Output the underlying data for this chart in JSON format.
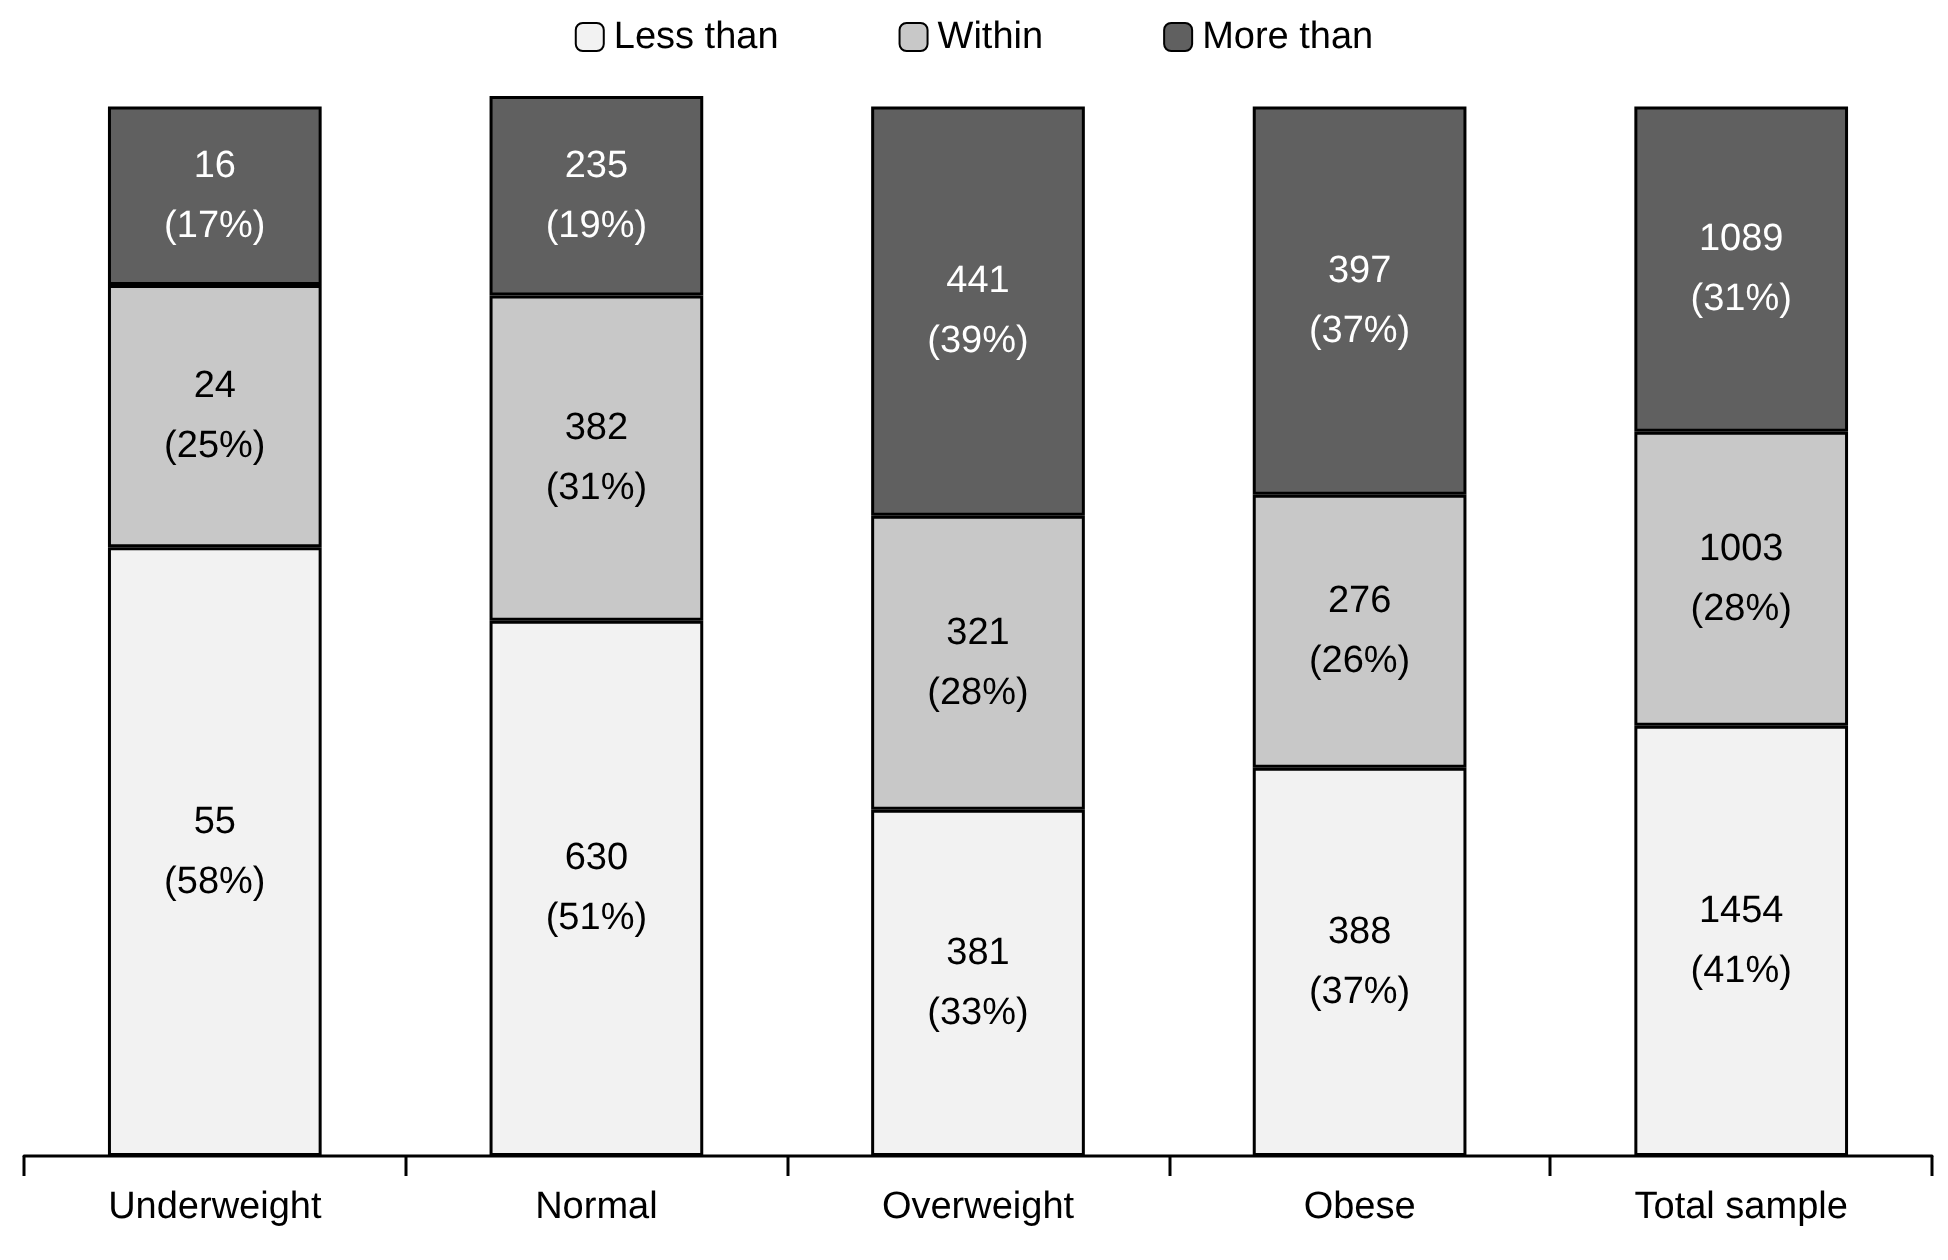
{
  "chart_data": {
    "type": "bar",
    "stacked": true,
    "legend": "top",
    "categories": [
      "Underweight",
      "Normal",
      "Overweight",
      "Obese",
      "Total sample"
    ],
    "series": [
      {
        "name": "Less than",
        "color": "#f2f2f2",
        "values": [
          58,
          51,
          33,
          37,
          41
        ],
        "value_labels": [
          "55 (58%)",
          "630 (51%)",
          "381 (33%)",
          "388 (37%)",
          "1454 (41%)"
        ]
      },
      {
        "name": "Within",
        "color": "#c8c8c8",
        "values": [
          25,
          31,
          28,
          26,
          28
        ],
        "value_labels": [
          "24 (25%)",
          "382 (31%)",
          "321 (28%)",
          "276 (26%)",
          "1003 (28%)"
        ]
      },
      {
        "name": "More than",
        "color": "#606060",
        "values": [
          17,
          19,
          39,
          37,
          31
        ],
        "value_labels": [
          "16 (17%)",
          "235 (19%)",
          "441 (39%)",
          "397 (37%)",
          "1089 (31%)"
        ]
      }
    ]
  }
}
